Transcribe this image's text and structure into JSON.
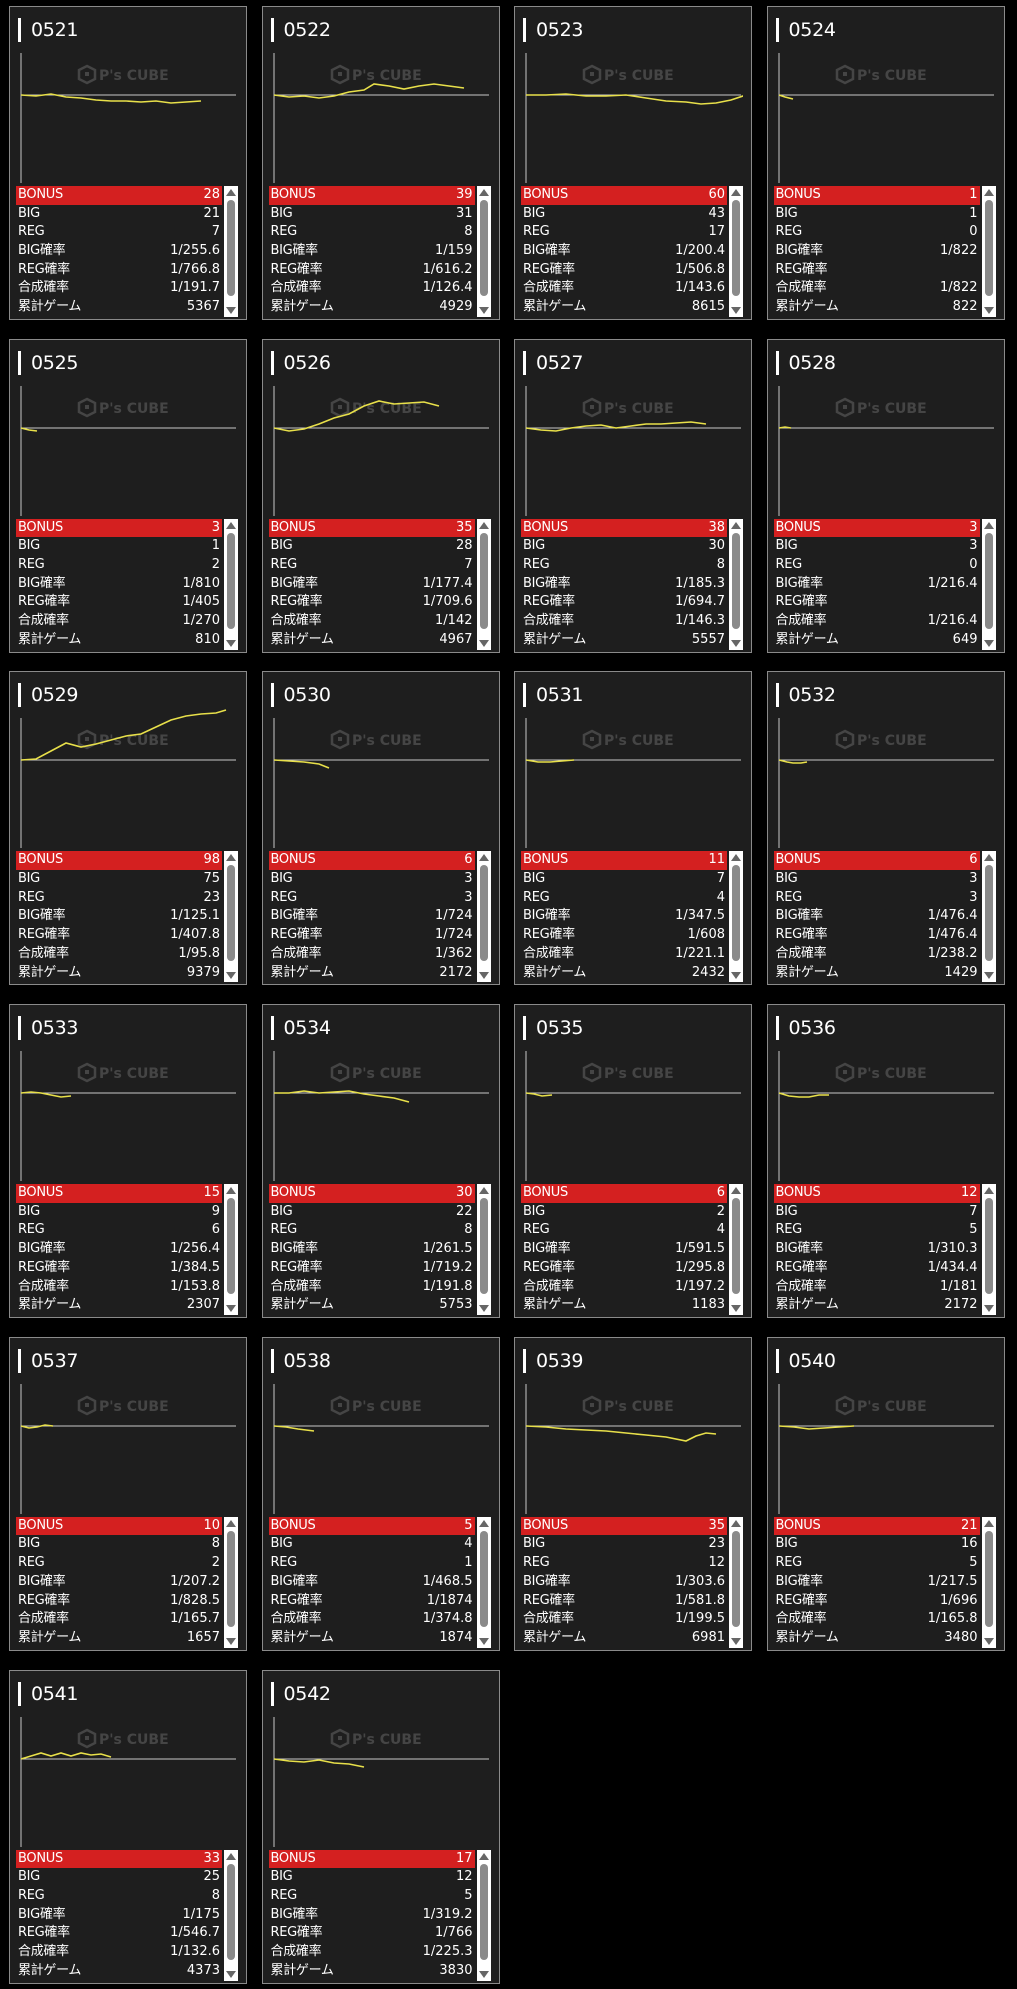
{
  "labels": {
    "bonus": "BONUS",
    "big": "BIG",
    "reg": "REG",
    "big_rate": "BIG確率",
    "reg_rate": "REG確率",
    "total_rate": "合成確率",
    "games": "累計ゲーム"
  },
  "watermark": {
    "logo_text": "P's CUBE"
  },
  "colors": {
    "bonus_bar": "#d42020",
    "trend_line": "#e8e04a",
    "card_bg": "#1e1e1e"
  },
  "machines": [
    {
      "id": "0521",
      "bonus": "28",
      "big": "21",
      "reg": "7",
      "big_rate": "1/255.6",
      "reg_rate": "1/766.8",
      "total_rate": "1/191.7",
      "games": "5367"
    },
    {
      "id": "0522",
      "bonus": "39",
      "big": "31",
      "reg": "8",
      "big_rate": "1/159",
      "reg_rate": "1/616.2",
      "total_rate": "1/126.4",
      "games": "4929"
    },
    {
      "id": "0523",
      "bonus": "60",
      "big": "43",
      "reg": "17",
      "big_rate": "1/200.4",
      "reg_rate": "1/506.8",
      "total_rate": "1/143.6",
      "games": "8615"
    },
    {
      "id": "0524",
      "bonus": "1",
      "big": "1",
      "reg": "0",
      "big_rate": "1/822",
      "reg_rate": "",
      "total_rate": "1/822",
      "games": "822"
    },
    {
      "id": "0525",
      "bonus": "3",
      "big": "1",
      "reg": "2",
      "big_rate": "1/810",
      "reg_rate": "1/405",
      "total_rate": "1/270",
      "games": "810"
    },
    {
      "id": "0526",
      "bonus": "35",
      "big": "28",
      "reg": "7",
      "big_rate": "1/177.4",
      "reg_rate": "1/709.6",
      "total_rate": "1/142",
      "games": "4967"
    },
    {
      "id": "0527",
      "bonus": "38",
      "big": "30",
      "reg": "8",
      "big_rate": "1/185.3",
      "reg_rate": "1/694.7",
      "total_rate": "1/146.3",
      "games": "5557"
    },
    {
      "id": "0528",
      "bonus": "3",
      "big": "3",
      "reg": "0",
      "big_rate": "1/216.4",
      "reg_rate": "",
      "total_rate": "1/216.4",
      "games": "649"
    },
    {
      "id": "0529",
      "bonus": "98",
      "big": "75",
      "reg": "23",
      "big_rate": "1/125.1",
      "reg_rate": "1/407.8",
      "total_rate": "1/95.8",
      "games": "9379"
    },
    {
      "id": "0530",
      "bonus": "6",
      "big": "3",
      "reg": "3",
      "big_rate": "1/724",
      "reg_rate": "1/724",
      "total_rate": "1/362",
      "games": "2172"
    },
    {
      "id": "0531",
      "bonus": "11",
      "big": "7",
      "reg": "4",
      "big_rate": "1/347.5",
      "reg_rate": "1/608",
      "total_rate": "1/221.1",
      "games": "2432"
    },
    {
      "id": "0532",
      "bonus": "6",
      "big": "3",
      "reg": "3",
      "big_rate": "1/476.4",
      "reg_rate": "1/476.4",
      "total_rate": "1/238.2",
      "games": "1429"
    },
    {
      "id": "0533",
      "bonus": "15",
      "big": "9",
      "reg": "6",
      "big_rate": "1/256.4",
      "reg_rate": "1/384.5",
      "total_rate": "1/153.8",
      "games": "2307"
    },
    {
      "id": "0534",
      "bonus": "30",
      "big": "22",
      "reg": "8",
      "big_rate": "1/261.5",
      "reg_rate": "1/719.2",
      "total_rate": "1/191.8",
      "games": "5753"
    },
    {
      "id": "0535",
      "bonus": "6",
      "big": "2",
      "reg": "4",
      "big_rate": "1/591.5",
      "reg_rate": "1/295.8",
      "total_rate": "1/197.2",
      "games": "1183"
    },
    {
      "id": "0536",
      "bonus": "12",
      "big": "7",
      "reg": "5",
      "big_rate": "1/310.3",
      "reg_rate": "1/434.4",
      "total_rate": "1/181",
      "games": "2172"
    },
    {
      "id": "0537",
      "bonus": "10",
      "big": "8",
      "reg": "2",
      "big_rate": "1/207.2",
      "reg_rate": "1/828.5",
      "total_rate": "1/165.7",
      "games": "1657"
    },
    {
      "id": "0538",
      "bonus": "5",
      "big": "4",
      "reg": "1",
      "big_rate": "1/468.5",
      "reg_rate": "1/1874",
      "total_rate": "1/374.8",
      "games": "1874"
    },
    {
      "id": "0539",
      "bonus": "35",
      "big": "23",
      "reg": "12",
      "big_rate": "1/303.6",
      "reg_rate": "1/581.8",
      "total_rate": "1/199.5",
      "games": "6981"
    },
    {
      "id": "0540",
      "bonus": "21",
      "big": "16",
      "reg": "5",
      "big_rate": "1/217.5",
      "reg_rate": "1/696",
      "total_rate": "1/165.8",
      "games": "3480"
    },
    {
      "id": "0541",
      "bonus": "33",
      "big": "25",
      "reg": "8",
      "big_rate": "1/175",
      "reg_rate": "1/546.7",
      "total_rate": "1/132.6",
      "games": "4373"
    },
    {
      "id": "0542",
      "bonus": "17",
      "big": "12",
      "reg": "5",
      "big_rate": "1/319.2",
      "reg_rate": "1/766",
      "total_rate": "1/225.3",
      "games": "3830"
    }
  ]
}
